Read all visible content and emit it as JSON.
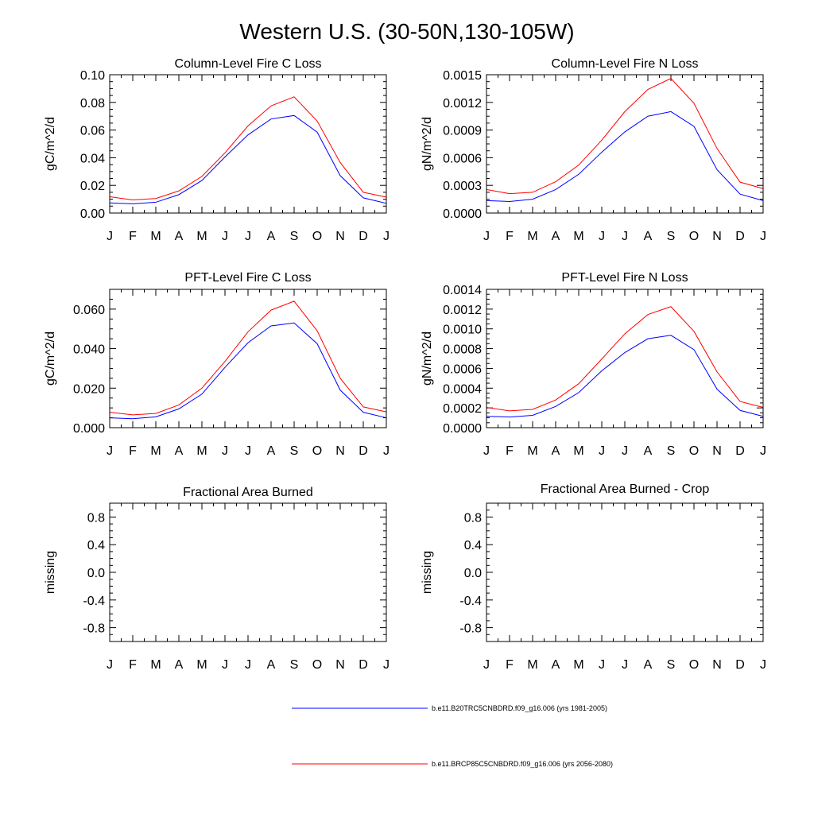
{
  "title": "Western U.S. (30-50N,130-105W)",
  "months": [
    "J",
    "F",
    "M",
    "A",
    "M",
    "J",
    "J",
    "A",
    "S",
    "O",
    "N",
    "D",
    "J"
  ],
  "legend": [
    {
      "label": "b.e11.B20TRC5CNBDRD.f09_g16.006 (yrs 1981-2005)",
      "color": "#0000ff"
    },
    {
      "label": "b.e11.BRCP85C5CNBDRD.f09_g16.006 (yrs 2056-2080)",
      "color": "#ff0000"
    }
  ],
  "chart_data": [
    {
      "type": "line",
      "title": "Column-Level Fire C Loss",
      "ylabel": "gC/m^2/d",
      "ylim": [
        0,
        0.1
      ],
      "yticks": [
        0.0,
        0.02,
        0.04,
        0.06,
        0.08,
        0.1
      ],
      "ytick_labels": [
        "0.00",
        "0.02",
        "0.04",
        "0.06",
        "0.08",
        "0.10"
      ],
      "series": [
        {
          "name": "b.e11.B20TRC5CNBDRD.f09_g16.006 (yrs 1981-2005)",
          "color": "#0000ff",
          "values": [
            0.0073,
            0.0067,
            0.0078,
            0.0133,
            0.0235,
            0.0405,
            0.0565,
            0.068,
            0.0705,
            0.0585,
            0.027,
            0.011,
            0.007
          ]
        },
        {
          "name": "b.e11.BRCP85C5CNBDRD.f09_g16.006 (yrs 2056-2080)",
          "color": "#ff0000",
          "values": [
            0.0118,
            0.0095,
            0.0105,
            0.016,
            0.0265,
            0.0435,
            0.063,
            0.0775,
            0.084,
            0.0665,
            0.0365,
            0.015,
            0.0115
          ]
        }
      ]
    },
    {
      "type": "line",
      "title": "Column-Level Fire N Loss",
      "ylabel": "gN/m^2/d",
      "ylim": [
        0,
        0.0015
      ],
      "yticks": [
        0.0,
        0.0003,
        0.0006,
        0.0009,
        0.0012,
        0.0015
      ],
      "ytick_labels": [
        "0.0000",
        "0.0003",
        "0.0006",
        "0.0009",
        "0.0012",
        "0.0015"
      ],
      "series": [
        {
          "name": "b.e11.B20TRC5CNBDRD.f09_g16.006 (yrs 1981-2005)",
          "color": "#0000ff",
          "values": [
            0.000135,
            0.000125,
            0.00015,
            0.000255,
            0.00042,
            0.00066,
            0.00088,
            0.00105,
            0.0011,
            0.00094,
            0.00047,
            0.000205,
            0.000135
          ]
        },
        {
          "name": "b.e11.BRCP85C5CNBDRD.f09_g16.006 (yrs 2056-2080)",
          "color": "#ff0000",
          "values": [
            0.000255,
            0.00021,
            0.000225,
            0.00034,
            0.00052,
            0.00079,
            0.0011,
            0.00134,
            0.00146,
            0.00119,
            0.0007,
            0.000335,
            0.000265
          ]
        }
      ]
    },
    {
      "type": "line",
      "title": "PFT-Level Fire C Loss",
      "ylabel": "gC/m^2/d",
      "ylim": [
        0,
        0.07
      ],
      "yticks": [
        0.0,
        0.02,
        0.04,
        0.06
      ],
      "ytick_labels": [
        "0.000",
        "0.020",
        "0.040",
        "0.060"
      ],
      "series": [
        {
          "name": "b.e11.B20TRC5CNBDRD.f09_g16.006 (yrs 1981-2005)",
          "color": "#0000ff",
          "values": [
            0.005,
            0.0045,
            0.0055,
            0.0095,
            0.017,
            0.0305,
            0.043,
            0.0515,
            0.053,
            0.0425,
            0.019,
            0.0078,
            0.005
          ]
        },
        {
          "name": "b.e11.BRCP85C5CNBDRD.f09_g16.006 (yrs 2056-2080)",
          "color": "#ff0000",
          "values": [
            0.0078,
            0.0065,
            0.0072,
            0.0115,
            0.02,
            0.0335,
            0.0485,
            0.0595,
            0.064,
            0.049,
            0.025,
            0.0105,
            0.008
          ]
        }
      ]
    },
    {
      "type": "line",
      "title": "PFT-Level Fire N Loss",
      "ylabel": "gN/m^2/d",
      "ylim": [
        0,
        0.0014
      ],
      "yticks": [
        0.0,
        0.0002,
        0.0004,
        0.0006,
        0.0008,
        0.001,
        0.0012,
        0.0014
      ],
      "ytick_labels": [
        "0.0000",
        "0.0002",
        "0.0004",
        "0.0006",
        "0.0008",
        "0.0010",
        "0.0012",
        "0.0014"
      ],
      "series": [
        {
          "name": "b.e11.B20TRC5CNBDRD.f09_g16.006 (yrs 1981-2005)",
          "color": "#0000ff",
          "values": [
            0.000115,
            0.000108,
            0.000125,
            0.000215,
            0.000355,
            0.000575,
            0.00076,
            0.0009,
            0.000935,
            0.00079,
            0.00039,
            0.000175,
            0.000115
          ]
        },
        {
          "name": "b.e11.BRCP85C5CNBDRD.f09_g16.006 (yrs 2056-2080)",
          "color": "#ff0000",
          "values": [
            0.000205,
            0.00017,
            0.000185,
            0.00028,
            0.000445,
            0.000695,
            0.00095,
            0.001145,
            0.001225,
            0.000975,
            0.000565,
            0.000265,
            0.000205
          ]
        }
      ]
    },
    {
      "type": "line",
      "title": "Fractional Area Burned",
      "ylabel": "missing",
      "ylim": [
        -1,
        1
      ],
      "yticks": [
        -0.8,
        -0.4,
        0.0,
        0.4,
        0.8
      ],
      "ytick_labels": [
        "-0.8",
        "-0.4",
        "0.0",
        "0.4",
        "0.8"
      ],
      "series": []
    },
    {
      "type": "line",
      "title": "Fractional Area Burned - Crop",
      "ylabel": "missing",
      "ylim": [
        -1,
        1
      ],
      "yticks": [
        -0.8,
        -0.4,
        0.0,
        0.4,
        0.8
      ],
      "ytick_labels": [
        "-0.8",
        "-0.4",
        "0.0",
        "0.4",
        "0.8"
      ],
      "series": []
    }
  ]
}
